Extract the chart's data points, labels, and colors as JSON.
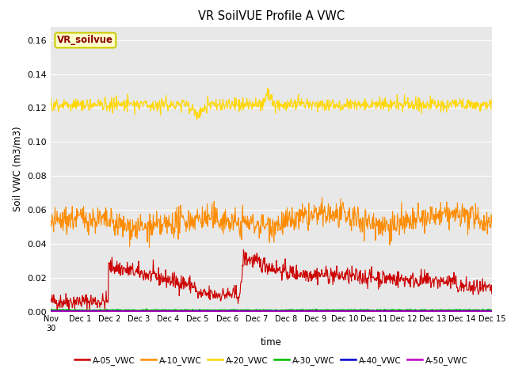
{
  "title": "VR SoilVUE Profile A VWC",
  "ylabel": "Soil VWC (m3/m3)",
  "xlabel": "time",
  "ylim": [
    0.0,
    0.168
  ],
  "yticks": [
    0.0,
    0.02,
    0.04,
    0.06,
    0.08,
    0.1,
    0.12,
    0.14,
    0.16
  ],
  "bg_color": "#e8e8e8",
  "fig_color": "#ffffff",
  "legend_label": "VR_soilvue",
  "series": {
    "A-05_VWC": {
      "color": "#cc0000",
      "lw": 0.8
    },
    "A-10_VWC": {
      "color": "#ff8c00",
      "lw": 0.8
    },
    "A-20_VWC": {
      "color": "#ffd700",
      "lw": 0.8
    },
    "A-30_VWC": {
      "color": "#00bb00",
      "lw": 1.2
    },
    "A-40_VWC": {
      "color": "#0000cc",
      "lw": 1.2
    },
    "A-50_VWC": {
      "color": "#bb00bb",
      "lw": 1.2
    }
  },
  "xtick_labels": [
    "Nov 30",
    "Dec 1",
    "Dec 2",
    "Dec 3",
    "Dec 4",
    "Dec 5",
    "Dec 6",
    "Dec 7",
    "Dec 8",
    "Dec 9",
    "Dec 10",
    "Dec 11",
    "Dec 12",
    "Dec 13",
    "Dec 14",
    "Dec 15"
  ],
  "n_points": 900
}
